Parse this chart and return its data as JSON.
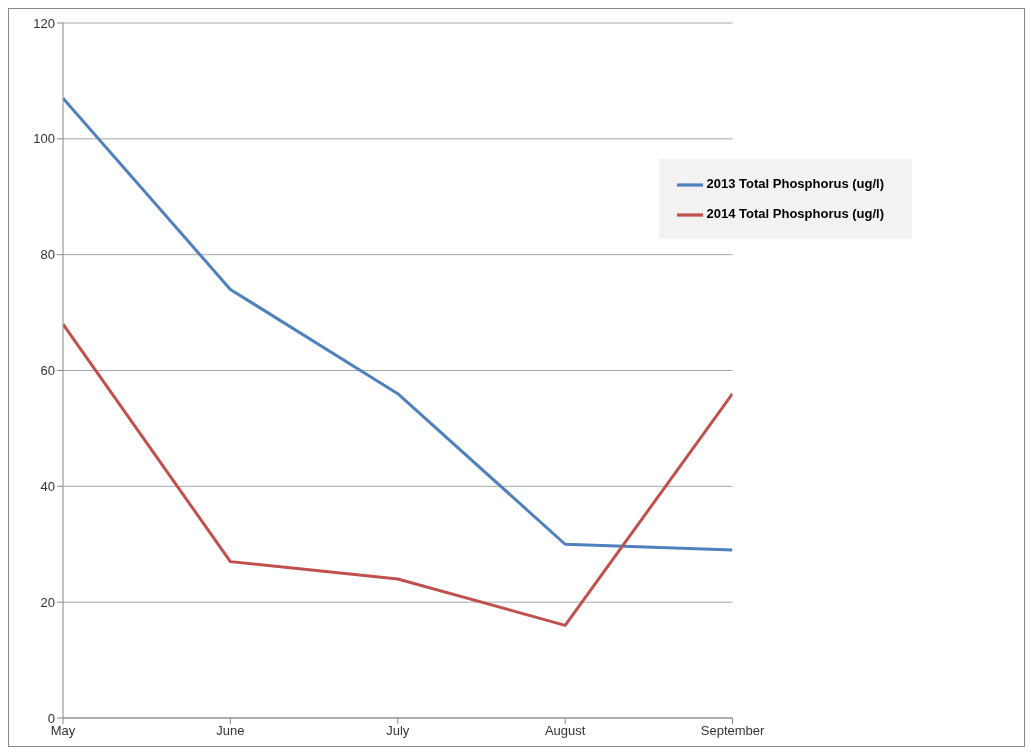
{
  "chart_data": {
    "type": "line",
    "categories": [
      "May",
      "June",
      "July",
      "August",
      "September"
    ],
    "series": [
      {
        "name": "2013 Total Phosphorus (ug/l)",
        "color": "#4f81bd",
        "values": [
          107,
          74,
          56,
          30,
          29
        ]
      },
      {
        "name": "2014 Total Phosphorus (ug/l)",
        "color": "#c0504d",
        "values": [
          68,
          27,
          24,
          16,
          56
        ]
      }
    ],
    "ylim": [
      0,
      120
    ],
    "yticks": [
      0,
      20,
      40,
      60,
      80,
      100,
      120
    ],
    "grid": "y",
    "legend": "top right",
    "marker": "none",
    "line_style": "solid"
  }
}
